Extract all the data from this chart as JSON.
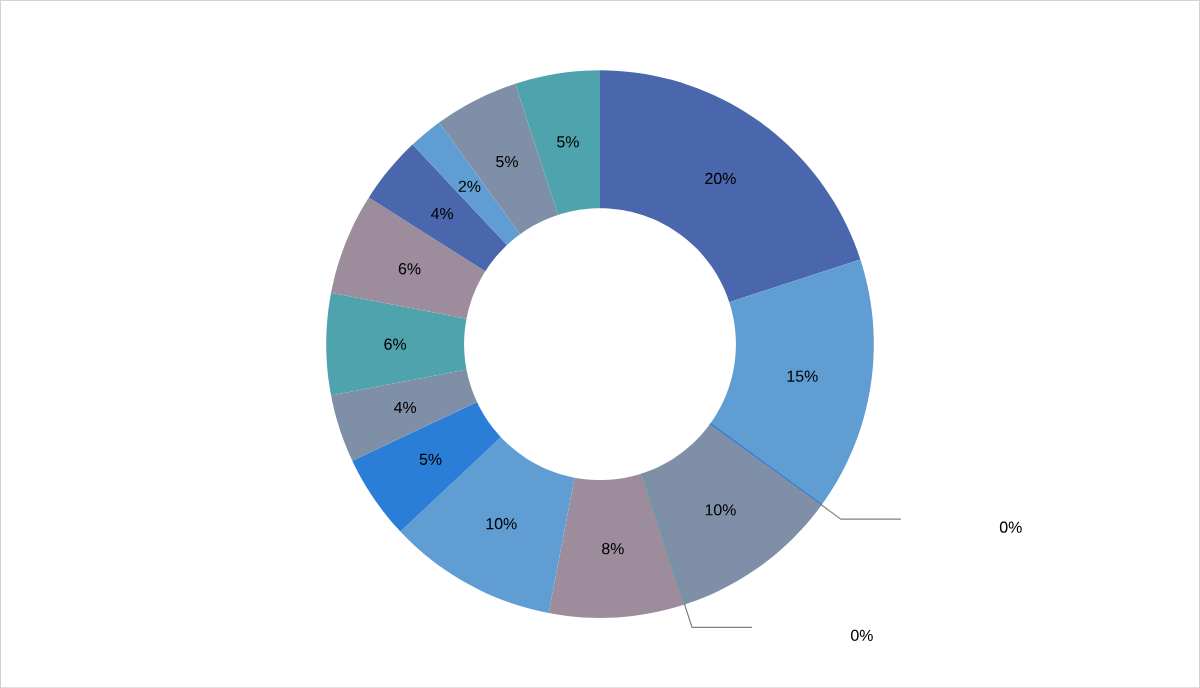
{
  "chart_data": {
    "type": "donut",
    "categories": [
      null,
      null,
      null,
      null,
      null,
      null,
      null,
      null,
      null,
      null,
      null,
      null,
      null,
      null,
      null
    ],
    "values": [
      20,
      15,
      0,
      10,
      0,
      8,
      10,
      5,
      4,
      6,
      6,
      4,
      2,
      5,
      5
    ],
    "value_labels": [
      "20%",
      "15%",
      "0%",
      "10%",
      "0%",
      "8%",
      "10%",
      "5%",
      "4%",
      "6%",
      "6%",
      "4%",
      "2%",
      "5%",
      "5%"
    ],
    "colors": [
      "#4a66ad",
      "#5f9dd2",
      "#2f7ed8",
      "#7f8fa8",
      "#4ea3ac",
      "#9c8c9c",
      "#5f9dd2",
      "#2b7ed8",
      "#7f8fa8",
      "#4ea3ac",
      "#9c8c9c",
      "#4a66ad",
      "#5f9dd2",
      "#7f8fa8",
      "#4ea3ac"
    ]
  }
}
